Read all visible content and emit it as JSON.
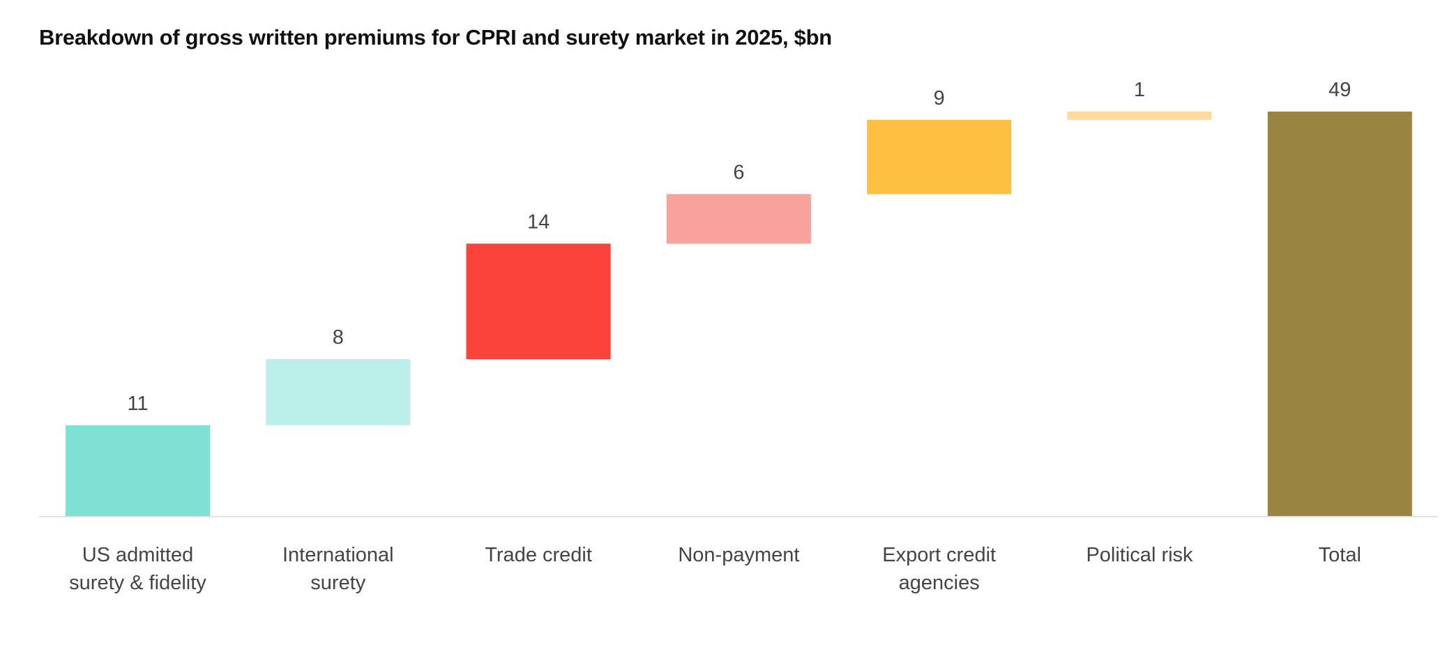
{
  "chart_data": {
    "type": "waterfall",
    "title": "Breakdown of gross written premiums for CPRI and surety market in 2025, $bn",
    "xlabel": "",
    "ylabel": "",
    "ylim": [
      0,
      49
    ],
    "grid": false,
    "legend": "none",
    "categories": [
      [
        "US admitted",
        "surety & fidelity"
      ],
      [
        "International",
        "surety"
      ],
      [
        "Trade credit"
      ],
      [
        "Non-payment"
      ],
      [
        "Export credit",
        "agencies"
      ],
      [
        "Political risk"
      ],
      [
        "Total"
      ]
    ],
    "values": [
      11,
      8,
      14,
      6,
      9,
      1,
      49
    ],
    "is_total": [
      false,
      false,
      false,
      false,
      false,
      false,
      true
    ],
    "value_labels": [
      "11",
      "8",
      "14",
      "6",
      "9",
      "1",
      "49"
    ],
    "colors": [
      "#7fe1d4",
      "#bbefe9",
      "#fb433b",
      "#f9a29c",
      "#ffc042",
      "#fcdb9c",
      "#9a8441"
    ],
    "axis_color": "#e3e3e3"
  }
}
